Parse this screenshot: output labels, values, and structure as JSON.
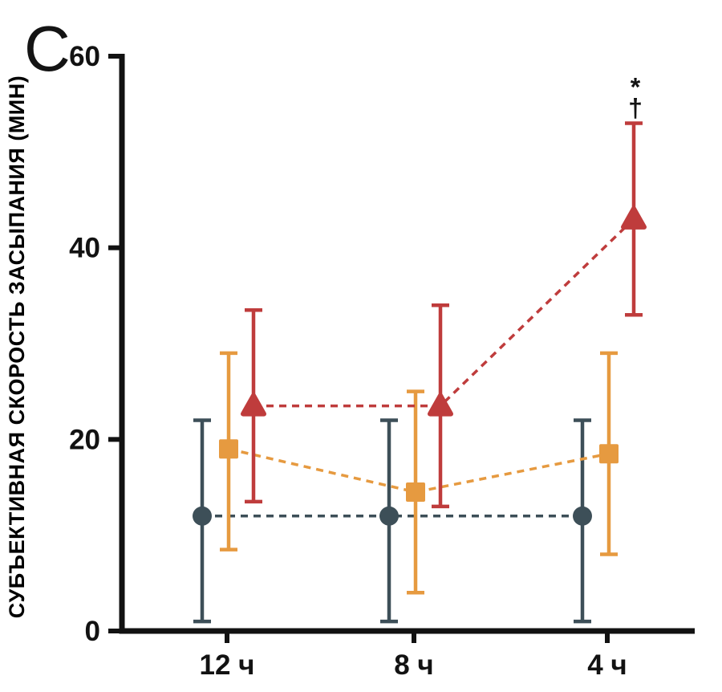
{
  "panel_label": "C",
  "chart_data": {
    "type": "line",
    "title": "",
    "xlabel": "",
    "ylabel": "СУБЪЕКТИВНАЯ СКОРОСТЬ ЗАСЫПАНИЯ (МИН)",
    "ylim": [
      0,
      60
    ],
    "yticks": [
      0,
      20,
      40,
      60
    ],
    "categories": [
      "12 ч",
      "8 ч",
      "4 ч"
    ],
    "grid": false,
    "legend": "none",
    "line_style": "dashed",
    "error_bars": "mean ± sd shown as vertical bars with caps",
    "series": [
      {
        "name": "circle-series",
        "marker": "circle",
        "color": "#3d4f58",
        "values": [
          12,
          12,
          12
        ],
        "err_low": [
          1,
          1,
          1
        ],
        "err_high": [
          22,
          22,
          22
        ]
      },
      {
        "name": "square-series",
        "marker": "square",
        "color": "#e69a40",
        "values": [
          19,
          14.5,
          18.5
        ],
        "err_low": [
          8.5,
          4,
          8
        ],
        "err_high": [
          29,
          25,
          29
        ]
      },
      {
        "name": "triangle-series",
        "marker": "triangle",
        "color": "#bf3c3c",
        "values": [
          23.5,
          23.5,
          43
        ],
        "err_low": [
          13.5,
          13,
          33
        ],
        "err_high": [
          33.5,
          34,
          53
        ]
      }
    ],
    "annotations": [
      {
        "text": "*",
        "category": 2,
        "series": 2
      },
      {
        "text": "†",
        "category": 2,
        "series": 2
      }
    ]
  }
}
